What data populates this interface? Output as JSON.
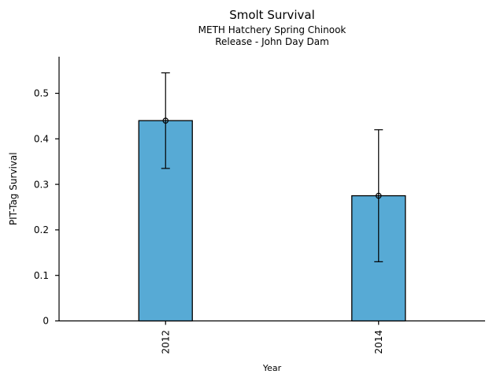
{
  "title": "Smolt Survival",
  "subtitle1": "METH Hatchery Spring Chinook",
  "subtitle2": "Release - John Day Dam",
  "colors": {
    "background": "#ffffff",
    "bar_fill": "#57AAD5",
    "bar_edge": "#000000",
    "axis": "#000000",
    "error_bar": "#000000",
    "text": "#000000"
  },
  "chart_data": {
    "type": "bar",
    "title": "Smolt Survival",
    "subtitle": [
      "METH Hatchery Spring Chinook",
      "Release - John Day Dam"
    ],
    "xlabel": "Year",
    "ylabel": "PIT-Tag Survival",
    "categories": [
      "2012",
      "2014"
    ],
    "values": [
      0.44,
      0.275
    ],
    "error_low": [
      0.335,
      0.13
    ],
    "error_high": [
      0.545,
      0.42
    ],
    "marker": "open-circle-at-bar-top",
    "ylim": [
      0,
      0.58
    ],
    "yticks": [
      0,
      0.1,
      0.2,
      0.3,
      0.4,
      0.5
    ],
    "ytick_labels": [
      "0",
      "0.1",
      "0.2",
      "0.3",
      "0.4",
      "0.5"
    ],
    "x_tick_label_rotation": -90,
    "grid": false,
    "legend": false
  }
}
